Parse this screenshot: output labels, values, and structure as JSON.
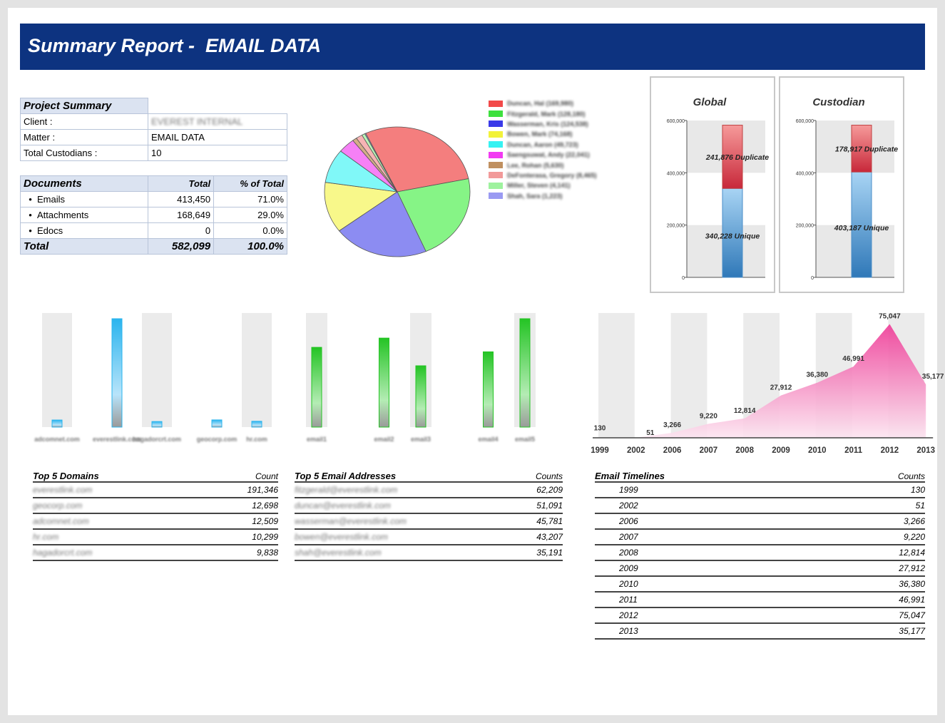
{
  "title": "Summary Report -  EMAIL DATA",
  "project_summary": {
    "header": "Project Summary",
    "client_label": "Client :",
    "client_value": "EVEREST INTERNAL",
    "matter_label": "Matter :",
    "matter_value": "EMAIL DATA",
    "custodians_label": "Total Custodians :",
    "custodians_value": "10"
  },
  "documents": {
    "header": "Documents",
    "col_total": "Total",
    "col_pct": "% of Total",
    "rows": [
      {
        "label": "Emails",
        "total": "413,450",
        "pct": "71.0%"
      },
      {
        "label": "Attachments",
        "total": "168,649",
        "pct": "29.0%"
      },
      {
        "label": "Edocs",
        "total": "0",
        "pct": "0.0%"
      }
    ],
    "total_label": "Total",
    "total_value": "582,099",
    "total_pct": "100.0%"
  },
  "pie_legend": [
    {
      "name": "Duncan, Hal (169,980)",
      "color": "#f24a4a"
    },
    {
      "name": "Fitzgerald, Mark (128,180)",
      "color": "#3ee03e"
    },
    {
      "name": "Wasserman, Kris (124,538)",
      "color": "#3a3ae8"
    },
    {
      "name": "Bowen, Mark (74,168)",
      "color": "#f2f23a"
    },
    {
      "name": "Duncan, Aaron (49,723)",
      "color": "#36f2f2"
    },
    {
      "name": "Saengsuwat, Andy (22,041)",
      "color": "#f23af2"
    },
    {
      "name": "Lee, Rohan (5,630)",
      "color": "#c09060"
    },
    {
      "name": "DeFonterasa, Gregory (8,465)",
      "color": "#f29a9a"
    },
    {
      "name": "Miller, Steven (4,141)",
      "color": "#9ef29e"
    },
    {
      "name": "Shah, Sara (1,223)",
      "color": "#9a9af2"
    }
  ],
  "chart_data": [
    {
      "type": "pie",
      "title": "",
      "labels": [
        "Duncan, Hal",
        "Fitzgerald, Mark",
        "Wasserman, Kris",
        "Bowen, Mark",
        "Duncan, Aaron",
        "Saengsuwat, Andy",
        "Lee, Rohan",
        "DeFonterasa, Gregory",
        "Miller, Steven",
        "Shah, Sara"
      ],
      "values": [
        169980,
        128180,
        124538,
        74168,
        49723,
        22041,
        5630,
        8465,
        4141,
        1223
      ],
      "colors": [
        "#f47e7e",
        "#86f486",
        "#8c8cf2",
        "#f8f88a",
        "#80f8f8",
        "#f680f6",
        "#d4ae88",
        "#f6b4b4",
        "#b8f6b8",
        "#b4b4f6"
      ]
    },
    {
      "type": "bar",
      "title": "Global",
      "stacked": true,
      "ylim": [
        0,
        600000
      ],
      "ticks": [
        "0",
        "200,000",
        "400,000",
        "600,000"
      ],
      "series": [
        {
          "name": "Unique",
          "value": 340228,
          "label": "340,228 Unique"
        },
        {
          "name": "Duplicate",
          "value": 241876,
          "label": "241,876 Duplicate"
        }
      ]
    },
    {
      "type": "bar",
      "title": "Custodian",
      "stacked": true,
      "ylim": [
        0,
        600000
      ],
      "ticks": [
        "0",
        "200,000",
        "400,000",
        "600,000"
      ],
      "series": [
        {
          "name": "Unique",
          "value": 403187,
          "label": "403,187 Unique"
        },
        {
          "name": "Duplicate",
          "value": 178917,
          "label": "178,917 Duplicate"
        }
      ]
    },
    {
      "type": "bar",
      "title": "",
      "categories": [
        "adcomnet.com",
        "everestlink.com",
        "hagadorcrt.com",
        "geocorp.com",
        "hr.com"
      ],
      "values": [
        12509,
        191346,
        9838,
        12698,
        10299
      ],
      "color": "#2ab4ee"
    },
    {
      "type": "bar",
      "title": "",
      "categories": [
        "email1",
        "email2",
        "email3",
        "email4",
        "email5"
      ],
      "values": [
        45781,
        51091,
        35191,
        43207,
        62209
      ],
      "color": "#24c424"
    },
    {
      "type": "area",
      "title": "",
      "x": [
        "1999",
        "2002",
        "2006",
        "2007",
        "2008",
        "2009",
        "2010",
        "2011",
        "2012",
        "2013"
      ],
      "values": [
        130,
        51,
        3266,
        9220,
        12814,
        27912,
        36380,
        46991,
        75047,
        35177
      ],
      "labels": [
        "130",
        "51",
        "3,266",
        "9,220",
        "12,814",
        "27,912",
        "36,380",
        "46,991",
        "75,047",
        "35,177"
      ],
      "color": "#ee3a96"
    }
  ],
  "top_domains": {
    "header": "Top 5 Domains",
    "count_label": "Count",
    "rows": [
      {
        "name": "everestlink.com",
        "count": "191,346"
      },
      {
        "name": "geocorp.com",
        "count": "12,698"
      },
      {
        "name": "adcomnet.com",
        "count": "12,509"
      },
      {
        "name": "hr.com",
        "count": "10,299"
      },
      {
        "name": "hagadorcrt.com",
        "count": "9,838"
      }
    ]
  },
  "top_emails": {
    "header": "Top 5 Email Addresses",
    "count_label": "Counts",
    "rows": [
      {
        "name": "fitzgerald@everestlink.com",
        "count": "62,209"
      },
      {
        "name": "duncan@everestlink.com",
        "count": "51,091"
      },
      {
        "name": "wasserman@everestlink.com",
        "count": "45,781"
      },
      {
        "name": "bowen@everestlink.com",
        "count": "43,207"
      },
      {
        "name": "shah@everestlink.com",
        "count": "35,191"
      }
    ]
  },
  "timelines": {
    "header": "Email Timelines",
    "count_label": "Counts",
    "rows": [
      {
        "year": "1999",
        "count": "130"
      },
      {
        "year": "2002",
        "count": "51"
      },
      {
        "year": "2006",
        "count": "3,266"
      },
      {
        "year": "2007",
        "count": "9,220"
      },
      {
        "year": "2008",
        "count": "12,814"
      },
      {
        "year": "2009",
        "count": "27,912"
      },
      {
        "year": "2010",
        "count": "36,380"
      },
      {
        "year": "2011",
        "count": "46,991"
      },
      {
        "year": "2012",
        "count": "75,047"
      },
      {
        "year": "2013",
        "count": "35,177"
      }
    ]
  }
}
